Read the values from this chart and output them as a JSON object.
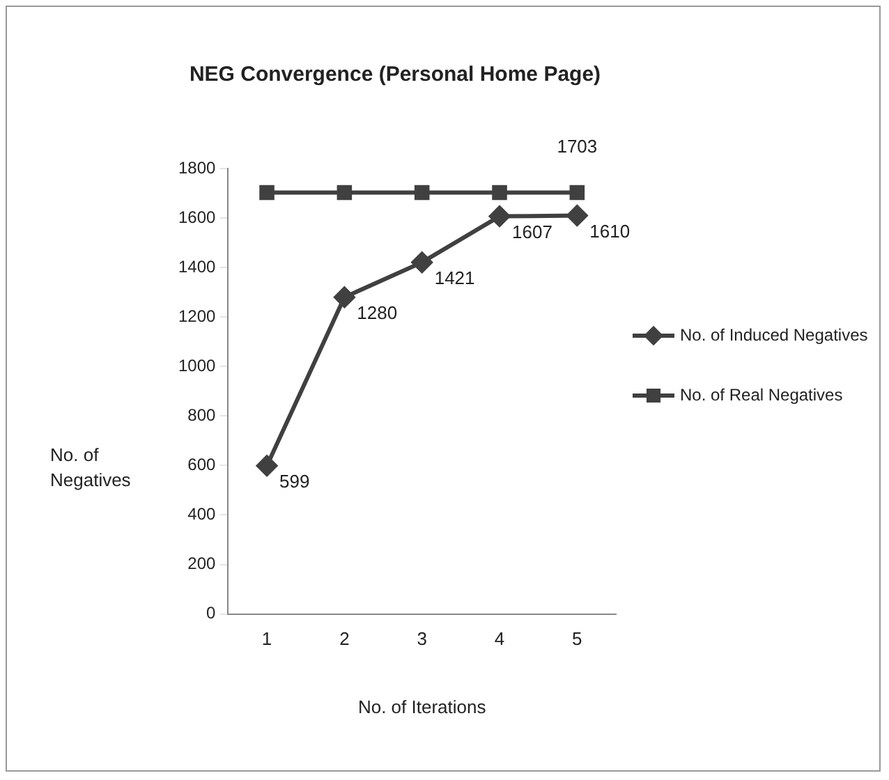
{
  "chart_data": {
    "type": "line",
    "title": "NEG Convergence (Personal Home Page)",
    "xlabel": "No. of Iterations",
    "ylabel": "No. of Negatives",
    "categories": [
      "1",
      "2",
      "3",
      "4",
      "5"
    ],
    "series": [
      {
        "name": "No. of Induced Negatives",
        "color": "#404040",
        "marker": "diamond",
        "values": [
          599,
          1280,
          1421,
          1607,
          1610
        ],
        "value_labels": [
          "599",
          "1280",
          "1421",
          "1607",
          "1610"
        ]
      },
      {
        "name": "No. of Real Negatives",
        "color": "#404040",
        "marker": "square",
        "values": [
          1703,
          1703,
          1703,
          1703,
          1703
        ],
        "value_labels": [
          null,
          null,
          null,
          null,
          "1703"
        ]
      }
    ],
    "ylim": [
      0,
      1800
    ],
    "yticks": [
      0,
      200,
      400,
      600,
      800,
      1000,
      1200,
      1400,
      1600,
      1800
    ],
    "grid": false,
    "legend": "right"
  }
}
